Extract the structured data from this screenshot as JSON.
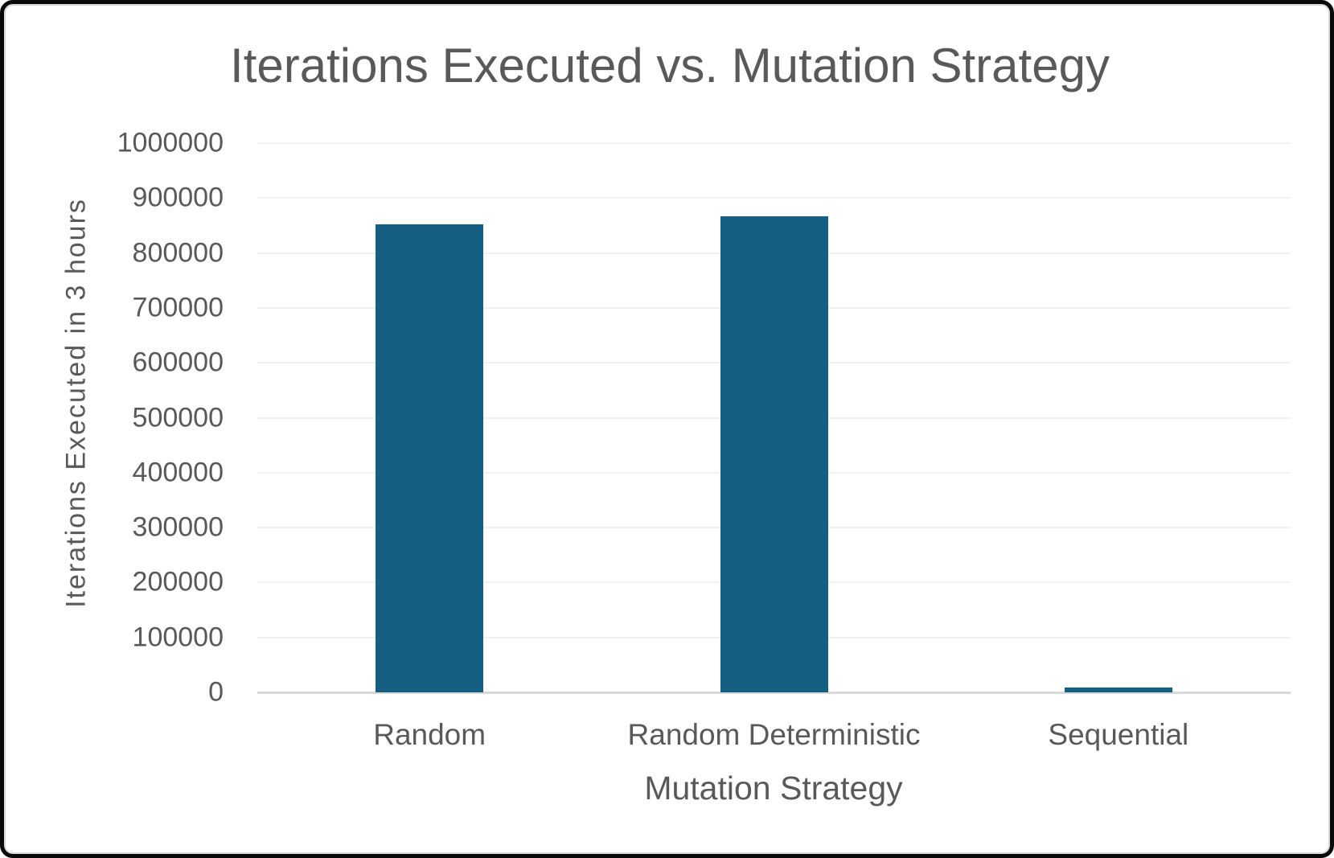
{
  "chart_data": {
    "type": "bar",
    "title": "Iterations Executed vs. Mutation Strategy",
    "xlabel": "Mutation Strategy",
    "ylabel": "Iterations Executed in 3 hours",
    "categories": [
      "Random",
      "Random Deterministic",
      "Sequential"
    ],
    "values": [
      852000,
      867000,
      9000
    ],
    "ylim": [
      0,
      1000000
    ],
    "ytick_step": 100000,
    "ytick_labels": [
      "0",
      "100000",
      "200000",
      "300000",
      "400000",
      "500000",
      "600000",
      "700000",
      "800000",
      "900000",
      "1000000"
    ],
    "grid": true,
    "legend": "none",
    "bar_color": "#156082",
    "gridline_color": "#f2f2f2",
    "axis_line_color": "#d9d9d9",
    "text_color": "#595959",
    "background_color": "#ffffff",
    "border_color": "#0a0a0a"
  }
}
